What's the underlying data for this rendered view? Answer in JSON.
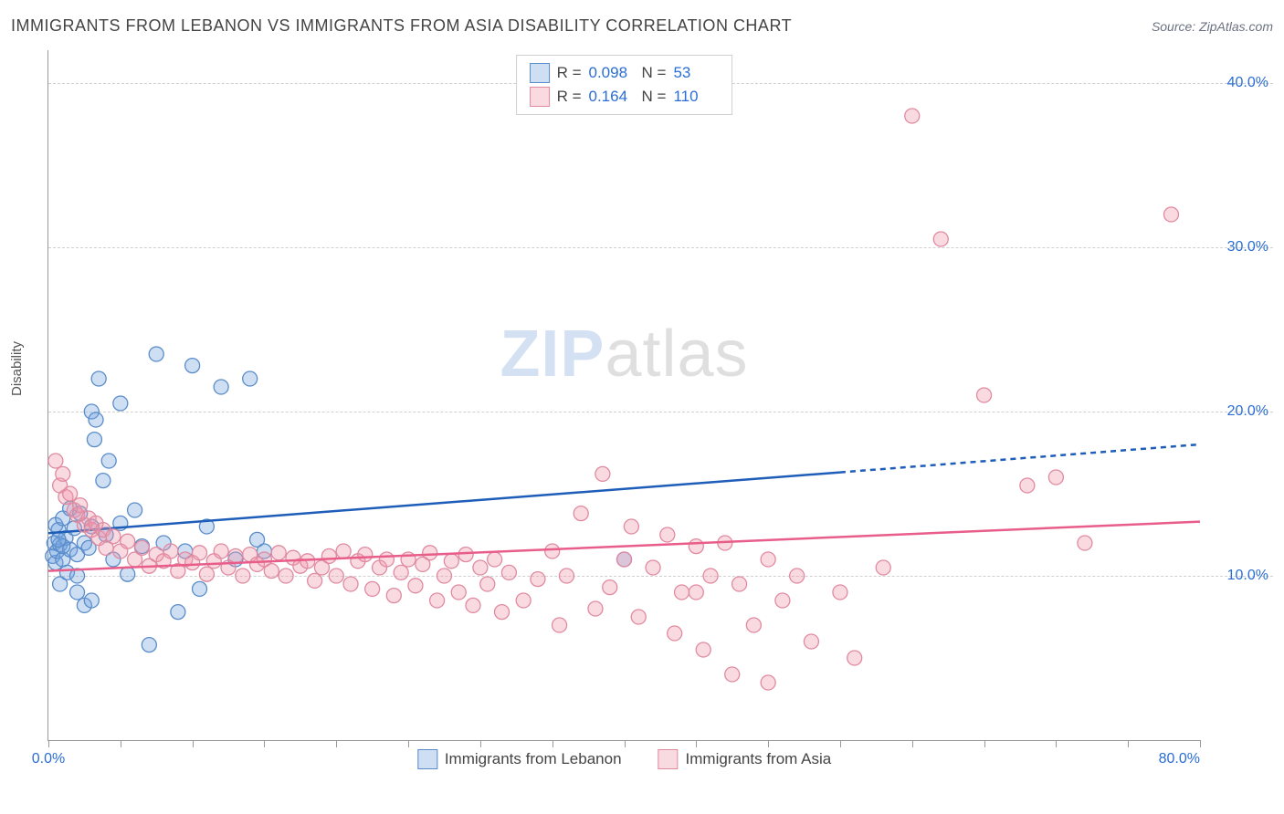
{
  "title": "IMMIGRANTS FROM LEBANON VS IMMIGRANTS FROM ASIA DISABILITY CORRELATION CHART",
  "source_label": "Source:",
  "source_name": "ZipAtlas.com",
  "y_axis_label": "Disability",
  "watermark": {
    "part1": "ZIP",
    "part2": "atlas"
  },
  "chart": {
    "type": "scatter",
    "background_color": "#ffffff",
    "grid_color": "#d0d0d0",
    "axis_color": "#999999",
    "tick_label_color": "#2a6dd6",
    "xlim": [
      0,
      80
    ],
    "ylim": [
      0,
      42
    ],
    "x_ticks": [
      0,
      5,
      10,
      15,
      20,
      25,
      30,
      35,
      40,
      45,
      50,
      55,
      60,
      65,
      70,
      75,
      80
    ],
    "x_tick_labels": {
      "0": "0.0%",
      "80": "80.0%"
    },
    "y_gridlines": [
      10,
      20,
      30,
      40
    ],
    "y_tick_labels": {
      "10": "10.0%",
      "20": "20.0%",
      "30": "30.0%",
      "40": "40.0%"
    },
    "marker_radius": 8,
    "marker_stroke_width": 1.3,
    "trendline_width": 2.5,
    "series": [
      {
        "id": "lebanon",
        "label": "Immigrants from Lebanon",
        "fill_color": "rgba(114,163,223,0.35)",
        "stroke_color": "#5a8cc9",
        "line_color": "#1e5db8",
        "R": "0.098",
        "N": "53",
        "trendline": {
          "x1": 0,
          "y1": 12.6,
          "x2": 55,
          "y2": 16.3,
          "extend_x": 80,
          "extend_y": 18.0
        },
        "points": [
          [
            0.3,
            11.2
          ],
          [
            0.4,
            12.0
          ],
          [
            0.5,
            10.8
          ],
          [
            0.5,
            13.1
          ],
          [
            0.6,
            11.5
          ],
          [
            0.7,
            12.8
          ],
          [
            0.8,
            11.9
          ],
          [
            0.8,
            9.5
          ],
          [
            1.0,
            13.5
          ],
          [
            1.0,
            11.0
          ],
          [
            1.2,
            12.3
          ],
          [
            1.3,
            10.2
          ],
          [
            1.5,
            14.1
          ],
          [
            1.5,
            11.6
          ],
          [
            1.8,
            12.9
          ],
          [
            2.0,
            11.3
          ],
          [
            2.0,
            9.0
          ],
          [
            2.2,
            13.8
          ],
          [
            2.5,
            12.0
          ],
          [
            2.5,
            8.2
          ],
          [
            2.8,
            11.7
          ],
          [
            3.0,
            13.0
          ],
          [
            3.0,
            20.0
          ],
          [
            3.2,
            18.3
          ],
          [
            3.3,
            19.5
          ],
          [
            3.5,
            22.0
          ],
          [
            3.8,
            15.8
          ],
          [
            4.0,
            12.5
          ],
          [
            4.2,
            17.0
          ],
          [
            4.5,
            11.0
          ],
          [
            5.0,
            13.2
          ],
          [
            5.0,
            20.5
          ],
          [
            5.5,
            10.1
          ],
          [
            6.0,
            14.0
          ],
          [
            6.5,
            11.8
          ],
          [
            7.5,
            23.5
          ],
          [
            8.0,
            12.0
          ],
          [
            9.0,
            7.8
          ],
          [
            9.5,
            11.5
          ],
          [
            10.0,
            22.8
          ],
          [
            10.5,
            9.2
          ],
          [
            11.0,
            13.0
          ],
          [
            12.0,
            21.5
          ],
          [
            13.0,
            11.0
          ],
          [
            14.0,
            22.0
          ],
          [
            14.5,
            12.2
          ],
          [
            15.0,
            11.5
          ],
          [
            3.0,
            8.5
          ],
          [
            2.0,
            10.0
          ],
          [
            1.0,
            11.8
          ],
          [
            0.7,
            12.2
          ],
          [
            7.0,
            5.8
          ],
          [
            40.0,
            11.0
          ]
        ]
      },
      {
        "id": "asia",
        "label": "Immigrants from Asia",
        "fill_color": "rgba(240,150,170,0.35)",
        "stroke_color": "#e08aa0",
        "line_color": "#e85d8a",
        "R": "0.164",
        "N": "110",
        "trendline": {
          "x1": 0,
          "y1": 10.3,
          "x2": 80,
          "y2": 13.3,
          "extend_x": 80,
          "extend_y": 13.3
        },
        "points": [
          [
            0.5,
            17.0
          ],
          [
            0.8,
            15.5
          ],
          [
            1.0,
            16.2
          ],
          [
            1.2,
            14.8
          ],
          [
            1.5,
            15.0
          ],
          [
            1.8,
            14.0
          ],
          [
            2.0,
            13.7
          ],
          [
            2.2,
            14.3
          ],
          [
            2.5,
            13.1
          ],
          [
            2.8,
            13.5
          ],
          [
            3.0,
            12.8
          ],
          [
            3.3,
            13.2
          ],
          [
            3.5,
            12.3
          ],
          [
            3.8,
            12.8
          ],
          [
            4.0,
            11.7
          ],
          [
            4.5,
            12.4
          ],
          [
            5.0,
            11.5
          ],
          [
            5.5,
            12.1
          ],
          [
            6.0,
            11.0
          ],
          [
            6.5,
            11.7
          ],
          [
            7.0,
            10.6
          ],
          [
            7.5,
            11.3
          ],
          [
            8.0,
            10.9
          ],
          [
            8.5,
            11.5
          ],
          [
            9.0,
            10.3
          ],
          [
            9.5,
            11.0
          ],
          [
            10.0,
            10.8
          ],
          [
            10.5,
            11.4
          ],
          [
            11.0,
            10.1
          ],
          [
            11.5,
            10.9
          ],
          [
            12.0,
            11.5
          ],
          [
            12.5,
            10.5
          ],
          [
            13.0,
            11.2
          ],
          [
            13.5,
            10.0
          ],
          [
            14.0,
            11.3
          ],
          [
            14.5,
            10.7
          ],
          [
            15.0,
            11.0
          ],
          [
            15.5,
            10.3
          ],
          [
            16.0,
            11.4
          ],
          [
            16.5,
            10.0
          ],
          [
            17.0,
            11.1
          ],
          [
            17.5,
            10.6
          ],
          [
            18.0,
            10.9
          ],
          [
            18.5,
            9.7
          ],
          [
            19.0,
            10.5
          ],
          [
            19.5,
            11.2
          ],
          [
            20.0,
            10.0
          ],
          [
            20.5,
            11.5
          ],
          [
            21.0,
            9.5
          ],
          [
            21.5,
            10.9
          ],
          [
            22.0,
            11.3
          ],
          [
            22.5,
            9.2
          ],
          [
            23.0,
            10.5
          ],
          [
            23.5,
            11.0
          ],
          [
            24.0,
            8.8
          ],
          [
            24.5,
            10.2
          ],
          [
            25.0,
            11.0
          ],
          [
            25.5,
            9.4
          ],
          [
            26.0,
            10.7
          ],
          [
            26.5,
            11.4
          ],
          [
            27.0,
            8.5
          ],
          [
            27.5,
            10.0
          ],
          [
            28.0,
            10.9
          ],
          [
            28.5,
            9.0
          ],
          [
            29.0,
            11.3
          ],
          [
            29.5,
            8.2
          ],
          [
            30.0,
            10.5
          ],
          [
            30.5,
            9.5
          ],
          [
            31.0,
            11.0
          ],
          [
            31.5,
            7.8
          ],
          [
            32.0,
            10.2
          ],
          [
            33.0,
            8.5
          ],
          [
            34.0,
            9.8
          ],
          [
            35.0,
            11.5
          ],
          [
            35.5,
            7.0
          ],
          [
            36.0,
            10.0
          ],
          [
            37.0,
            13.8
          ],
          [
            38.0,
            8.0
          ],
          [
            38.5,
            16.2
          ],
          [
            39.0,
            9.3
          ],
          [
            40.0,
            11.0
          ],
          [
            40.5,
            13.0
          ],
          [
            41.0,
            7.5
          ],
          [
            42.0,
            10.5
          ],
          [
            43.0,
            12.5
          ],
          [
            43.5,
            6.5
          ],
          [
            44.0,
            9.0
          ],
          [
            45.0,
            11.8
          ],
          [
            45.5,
            5.5
          ],
          [
            46.0,
            10.0
          ],
          [
            47.0,
            12.0
          ],
          [
            47.5,
            4.0
          ],
          [
            48.0,
            9.5
          ],
          [
            49.0,
            7.0
          ],
          [
            50.0,
            11.0
          ],
          [
            51.0,
            8.5
          ],
          [
            52.0,
            10.0
          ],
          [
            53.0,
            6.0
          ],
          [
            55.0,
            9.0
          ],
          [
            56.0,
            5.0
          ],
          [
            58.0,
            10.5
          ],
          [
            60.0,
            38.0
          ],
          [
            62.0,
            30.5
          ],
          [
            65.0,
            21.0
          ],
          [
            68.0,
            15.5
          ],
          [
            70.0,
            16.0
          ],
          [
            72.0,
            12.0
          ],
          [
            78.0,
            32.0
          ],
          [
            50.0,
            3.5
          ],
          [
            45.0,
            9.0
          ]
        ]
      }
    ]
  },
  "legend_top": {
    "border_color": "#d0d0d0",
    "R_label": "R =",
    "N_label": "N ="
  }
}
